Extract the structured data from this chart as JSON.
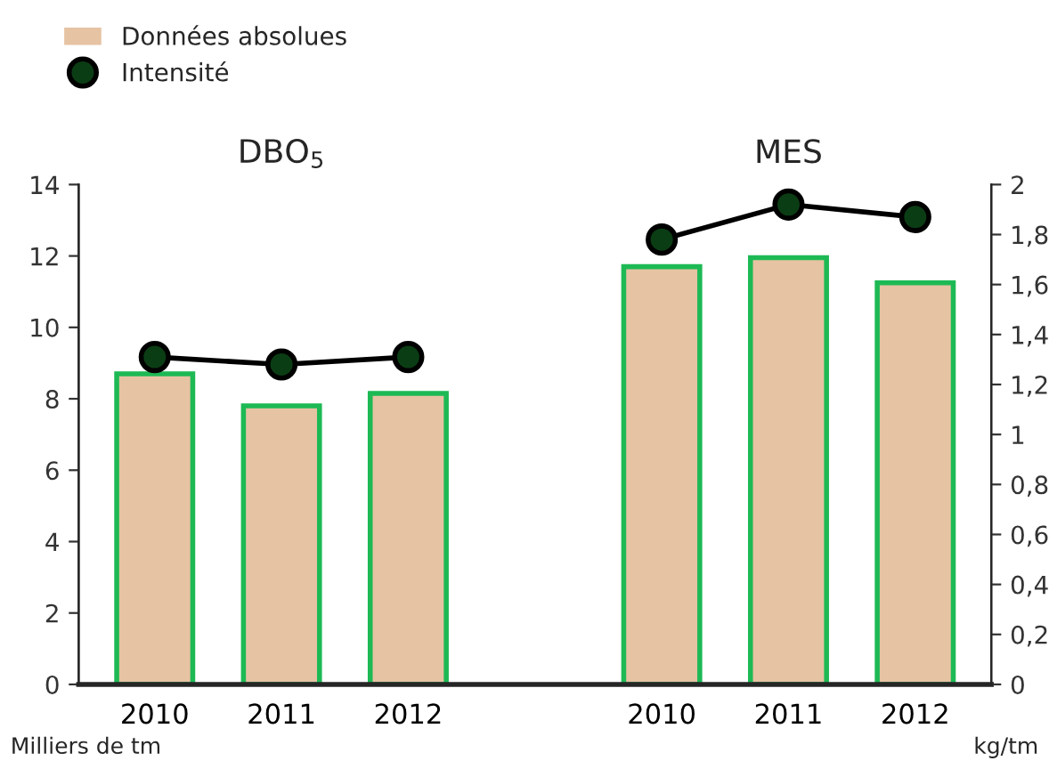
{
  "chart_data": {
    "type": "bar",
    "categories": [
      "2010",
      "2011",
      "2012",
      null,
      "2010",
      "2011",
      "2012"
    ],
    "series": [
      {
        "name": "Données absolues",
        "color": "#e6c3a3",
        "values": [
          8.7,
          7.8,
          8.15,
          null,
          11.7,
          11.95,
          11.25
        ]
      },
      {
        "name": "Intensité",
        "type": "line",
        "axis": "y2",
        "color": "#0b3d14",
        "marker": "circle",
        "values": [
          1.31,
          1.28,
          1.31,
          null,
          1.78,
          1.92,
          1.87
        ]
      }
    ],
    "ylim": [
      0,
      14
    ],
    "yticks": [
      0,
      2,
      4,
      6,
      8,
      10,
      12,
      14
    ],
    "y2lim": [
      0,
      2
    ],
    "y2ticks": [
      {
        "value": 0,
        "label": "0"
      },
      {
        "value": 0.2,
        "label": "0,2"
      },
      {
        "value": 0.4,
        "label": "0,4"
      },
      {
        "value": 0.6,
        "label": "0,6"
      },
      {
        "value": 0.8,
        "label": "0,8"
      },
      {
        "value": 1,
        "label": "1"
      },
      {
        "value": 1.2,
        "label": "1,2"
      },
      {
        "value": 1.4,
        "label": "1,4"
      },
      {
        "value": 1.6,
        "label": "1,6"
      },
      {
        "value": 1.8,
        "label": "1,8"
      },
      {
        "value": 2,
        "label": "2"
      }
    ],
    "xlabel": "Milliers de tm",
    "y2label": "kg/tm",
    "annotations": [
      "DBO$_{5}$",
      "MES"
    ],
    "legend": "top left",
    "grid": false
  }
}
